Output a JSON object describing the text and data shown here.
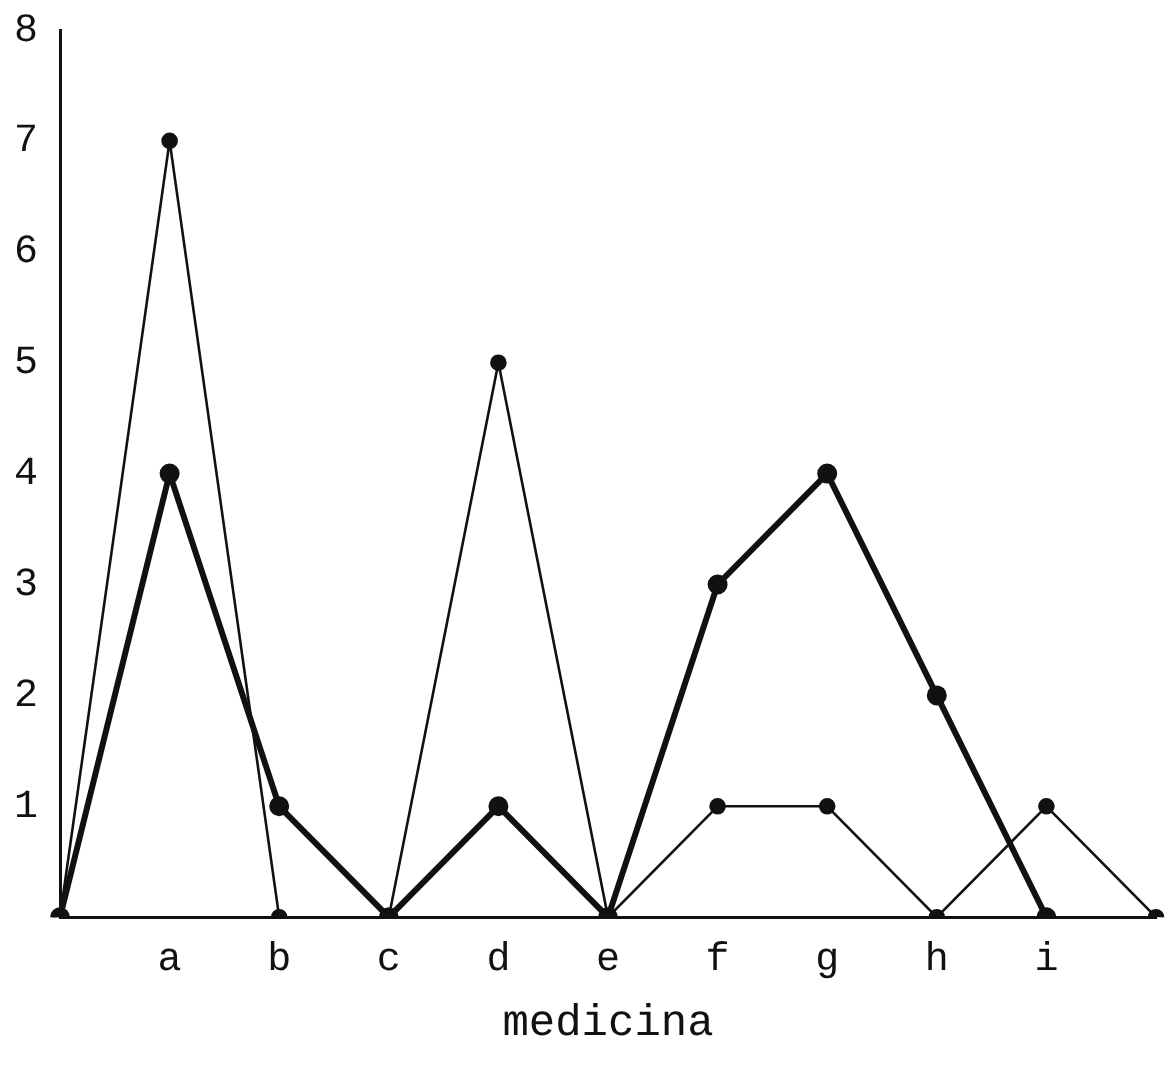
{
  "chart_data": {
    "type": "line",
    "xlabel": "medicina",
    "categories": [
      null,
      "a",
      "b",
      "c",
      "d",
      "e",
      "f",
      "g",
      "h",
      "i",
      null
    ],
    "series": [
      {
        "color": "#111111",
        "values": [
          0,
          7,
          0,
          0,
          5,
          0,
          1,
          1,
          0,
          1,
          0
        ]
      },
      {
        "color": "#111111",
        "values": [
          0,
          4,
          1,
          0,
          1,
          0,
          3,
          4,
          2,
          0,
          null
        ]
      }
    ],
    "ylim": [
      0,
      8
    ],
    "yticks": [
      1,
      2,
      3,
      4,
      5,
      6,
      7,
      8
    ],
    "grid": false,
    "legend": false,
    "marker": "circle",
    "line_style": "solid"
  }
}
